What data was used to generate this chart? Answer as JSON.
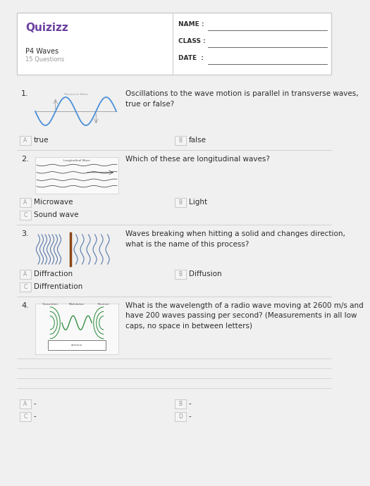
{
  "bg_color": "#f0f0f0",
  "card_color": "#ffffff",
  "border_color": "#cccccc",
  "text_color": "#2d2d2d",
  "gray_color": "#999999",
  "purple_color": "#6B3FA0",
  "answer_box_color": "#f5f5f5",
  "answer_box_border": "#cccccc",
  "logo_text": "Quizizz",
  "title": "P4 Waves",
  "subtitle": "15 Questions",
  "name_label": "NAME :",
  "class_label": "CLASS :",
  "date_label": "DATE  :",
  "q1_num": "1.",
  "q1_text": "Oscillations to the wave motion is parallel in transverse waves,\ntrue or false?",
  "q1_ans": [
    "true",
    "false"
  ],
  "q1_ans_labels": [
    "A",
    "B"
  ],
  "q2_num": "2.",
  "q2_text": "Which of these are longitudinal waves?",
  "q2_ans": [
    "Microwave",
    "Light",
    "Sound wave"
  ],
  "q2_ans_labels": [
    "A",
    "B",
    "C"
  ],
  "q3_num": "3.",
  "q3_text": "Waves breaking when hitting a solid and changes direction,\nwhat is the name of this process?",
  "q3_ans": [
    "Diffraction",
    "Diffusion",
    "Diffrentiation"
  ],
  "q3_ans_labels": [
    "A",
    "B",
    "C"
  ],
  "q4_num": "4.",
  "q4_text": "What is the wavelength of a radio wave moving at 2600 m/s and\nhave 200 waves passing per second? (Measurements in all low\ncaps, no space in between letters)",
  "q4_ans": [
    "-",
    "-",
    "-",
    "-"
  ],
  "q4_ans_labels": [
    "A",
    "B",
    "C",
    "D"
  ],
  "line_color": "#cccccc",
  "wave_color": "#4a90d9",
  "long_wave_color": "#333333",
  "diff_color": "#5577aa",
  "radio_wave_color": "#228833"
}
